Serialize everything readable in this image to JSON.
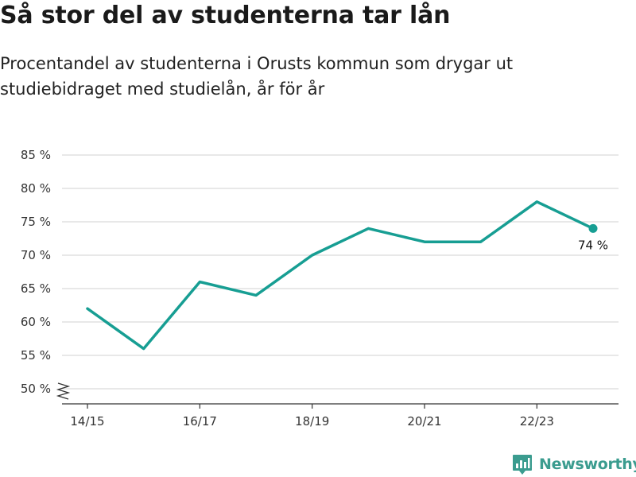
{
  "title": "Så stor del av studenterna tar lån",
  "subtitle": "Procentandel av studenterna i Orusts kommun som drygar ut studiebidraget med studielån, år för år",
  "brand": {
    "name": "Newsworthy",
    "icon": "newsworthy-logo-icon",
    "color": "#3b9c8f"
  },
  "colors": {
    "line": "#179e93",
    "grid": "#d9d9d9",
    "axis": "#333333"
  },
  "chart_data": {
    "type": "line",
    "title": "Så stor del av studenterna tar lån",
    "subtitle": "Procentandel av studenterna i Orusts kommun som drygar ut studiebidraget med studielån, år för år",
    "x": [
      "14/15",
      "15/16",
      "16/17",
      "17/18",
      "18/19",
      "19/20",
      "20/21",
      "21/22",
      "22/23",
      "23/24"
    ],
    "x_tick_labels": [
      "14/15",
      "16/17",
      "18/19",
      "20/21",
      "22/23"
    ],
    "series": [
      {
        "values": [
          62,
          56,
          66,
          64,
          70,
          74,
          72,
          72,
          78,
          74
        ]
      }
    ],
    "ylim": [
      50,
      85
    ],
    "y_ticks": [
      50,
      55,
      60,
      65,
      70,
      75,
      80,
      85
    ],
    "y_tick_suffix": " %",
    "y_axis_break": true,
    "grid": true,
    "last_point_label": "74 %"
  }
}
